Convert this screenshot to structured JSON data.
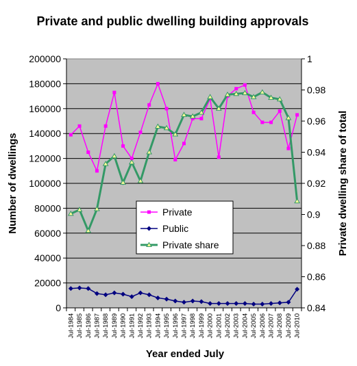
{
  "chart_data": {
    "type": "line",
    "title": "Private and public dwelling building approvals",
    "xlabel": "Year ended July",
    "ylabel": "Number of dwellings",
    "y2label": "Private dwelling share of total",
    "categories": [
      "Jul-1984",
      "Jul-1985",
      "Jul-1986",
      "Jul-1987",
      "Jul-1988",
      "Jul-1989",
      "Jul-1990",
      "Jul-1991",
      "Jul-1992",
      "Jul-1993",
      "Jul-1994",
      "Jul-1995",
      "Jul-1996",
      "Jul-1997",
      "Jul-1998",
      "Jul-1999",
      "Jul-2000",
      "Jul-2001",
      "Jul-2002",
      "Jul-2003",
      "Jul-2004",
      "Jul-2005",
      "Jul-2006",
      "Jul-2007",
      "Jul-2008",
      "Jul-2009",
      "Jul-2010"
    ],
    "ylim": [
      0,
      200000
    ],
    "yticks": [
      "0",
      "20000",
      "40000",
      "60000",
      "80000",
      "100000",
      "120000",
      "140000",
      "160000",
      "180000",
      "200000"
    ],
    "y2lim": [
      0.84,
      1.0
    ],
    "y2ticks": [
      "0.84",
      "0.86",
      "0.88",
      "0.9",
      "0.92",
      "0.94",
      "0.96",
      "0.98",
      "1"
    ],
    "legend_position": "center",
    "background": "#c0c0c0",
    "series": [
      {
        "name": "Private",
        "axis": "left",
        "color": "#ff00ff",
        "marker": "square",
        "values": [
          139000,
          146000,
          125000,
          110000,
          146000,
          173000,
          130000,
          120000,
          141000,
          163000,
          180000,
          160000,
          119000,
          132000,
          152000,
          152000,
          168000,
          121000,
          170000,
          176000,
          179000,
          157000,
          149000,
          149000,
          158000,
          128000,
          155000
        ]
      },
      {
        "name": "Public",
        "axis": "left",
        "color": "#000080",
        "marker": "diamond",
        "values": [
          15500,
          16000,
          15500,
          11500,
          10500,
          12000,
          11000,
          9000,
          12000,
          10500,
          8000,
          7000,
          5500,
          4500,
          5500,
          5000,
          3500,
          3500,
          3500,
          3500,
          3500,
          3000,
          3000,
          3500,
          4000,
          4500,
          15000
        ]
      },
      {
        "name": "Private share",
        "axis": "right",
        "color": "#339966",
        "marker": "triangle",
        "values": [
          0.9005,
          0.903,
          0.8895,
          0.9035,
          0.9325,
          0.9375,
          0.9205,
          0.9335,
          0.9215,
          0.94,
          0.9565,
          0.9555,
          0.9515,
          0.964,
          0.963,
          0.9655,
          0.9755,
          0.968,
          0.977,
          0.9775,
          0.978,
          0.9755,
          0.9785,
          0.975,
          0.974,
          0.962,
          0.9085
        ]
      }
    ]
  }
}
